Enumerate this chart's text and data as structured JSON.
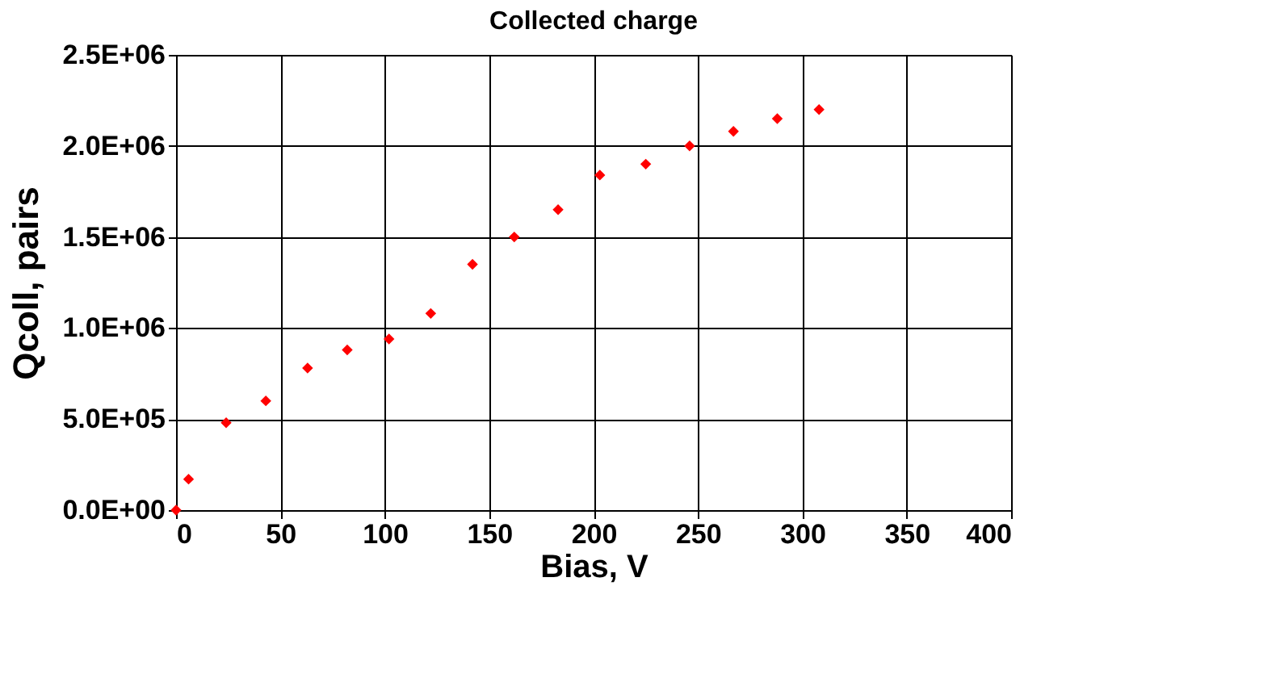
{
  "chart_data": {
    "type": "scatter",
    "title": "Collected charge",
    "xlabel": "Bias, V",
    "ylabel": "Qcoll, pairs",
    "x": [
      0,
      6,
      24,
      43,
      63,
      82,
      102,
      122,
      142,
      162,
      183,
      203,
      225,
      246,
      267,
      288,
      308
    ],
    "values": [
      0,
      170000,
      480000,
      600000,
      780000,
      880000,
      940000,
      1080000,
      1350000,
      1500000,
      1650000,
      1840000,
      1900000,
      2000000,
      2080000,
      2150000,
      2200000
    ],
    "color": "#ff0000",
    "marker": "diamond",
    "grid": true,
    "xlim": [
      0,
      400
    ],
    "xticks": [
      0,
      50,
      100,
      150,
      200,
      250,
      300,
      350,
      400
    ],
    "ylim": [
      0,
      2500000
    ],
    "yticks": [
      {
        "value": 0,
        "label": "0.0E+00"
      },
      {
        "value": 500000,
        "label": "5.0E+05"
      },
      {
        "value": 1000000,
        "label": "1.0E+06"
      },
      {
        "value": 1500000,
        "label": "1.5E+06"
      },
      {
        "value": 2000000,
        "label": "2.0E+06"
      },
      {
        "value": 2500000,
        "label": "2.5E+06"
      }
    ]
  }
}
